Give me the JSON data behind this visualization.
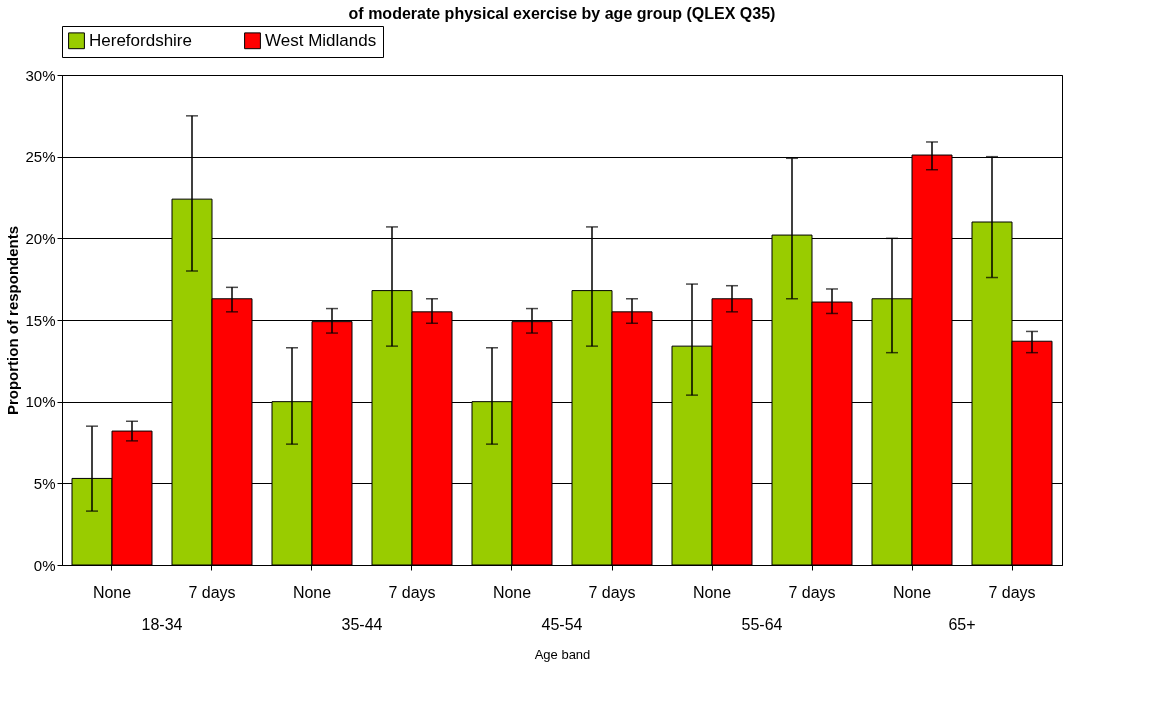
{
  "chart_data": {
    "type": "bar",
    "title": "of moderate physical exercise by age group (QLEX Q35)",
    "xlabel": "Age band",
    "ylabel": "Proportion of respondents",
    "categories": [
      "None",
      "7 days",
      "None",
      "7 days",
      "None",
      "7 days",
      "None",
      "7 days",
      "None",
      "7 days"
    ],
    "annotations": [
      "18-34",
      "35-44",
      "45-54",
      "55-64",
      "65+"
    ],
    "series": [
      {
        "name": "Herefordshire",
        "color": "#99cc00",
        "values": [
          5.3,
          22.4,
          10.0,
          16.8,
          10.0,
          16.8,
          13.4,
          20.2,
          16.3,
          21.0
        ],
        "errors": [
          [
            3.3,
            8.5
          ],
          [
            18.0,
            27.5
          ],
          [
            7.4,
            13.3
          ],
          [
            13.4,
            20.7
          ],
          [
            7.4,
            13.3
          ],
          [
            13.4,
            20.7
          ],
          [
            10.4,
            17.2
          ],
          [
            16.3,
            24.9
          ],
          [
            13.0,
            20.0
          ],
          [
            17.6,
            25.0
          ]
        ]
      },
      {
        "name": "West Midlands",
        "color": "#ff0000",
        "values": [
          8.2,
          16.3,
          14.9,
          15.5,
          14.9,
          15.5,
          16.3,
          16.1,
          25.1,
          13.7
        ],
        "errors": [
          [
            7.6,
            8.8
          ],
          [
            15.5,
            17.0
          ],
          [
            14.2,
            15.7
          ],
          [
            14.8,
            16.3
          ],
          [
            14.2,
            15.7
          ],
          [
            14.8,
            16.3
          ],
          [
            15.5,
            17.1
          ],
          [
            15.4,
            16.9
          ],
          [
            24.2,
            25.9
          ],
          [
            13.0,
            14.3
          ]
        ]
      }
    ],
    "ylim": [
      0,
      30
    ],
    "yticks": [
      {
        "value": 0,
        "label": "0%"
      },
      {
        "value": 5,
        "label": "5%"
      },
      {
        "value": 10,
        "label": "10%"
      },
      {
        "value": 15,
        "label": "15%"
      },
      {
        "value": 20,
        "label": "20%"
      },
      {
        "value": 25,
        "label": "25%"
      },
      {
        "value": 30,
        "label": "30%"
      }
    ],
    "grid": "y",
    "legend": "top"
  }
}
